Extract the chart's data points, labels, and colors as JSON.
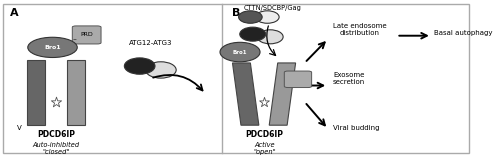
{
  "fig_width": 5.0,
  "fig_height": 1.59,
  "dpi": 100,
  "label_A": "A",
  "label_B": "B",
  "text_PDCD6IP_A": "PDCD6IP",
  "text_closed": "Auto-inhibited\n\"closed\"",
  "text_PDCD6IP_B": "PDCD6IP",
  "text_open": "Active\n\"open\"",
  "text_ATG12": "ATG12-ATG3",
  "text_CTTN": "CTTN/SDCBP/Gag",
  "text_late_endo": "Late endosome\ndistribution",
  "text_exosome": "Exosome\nsecretion",
  "text_viral": "Viral budding",
  "text_basal": "Basal autophagy",
  "text_PRD": "PRD",
  "text_Bro1": "Bro1",
  "text_V": "V",
  "arm_color": "#666666",
  "v_arm_color": "#999999",
  "bro1_color": "#777777",
  "atg_dark": "#222222",
  "atg_light": "#dddddd",
  "partner_dark": "#555555",
  "partner_light": "#eeeeee",
  "prd_color": "#aaaaaa"
}
